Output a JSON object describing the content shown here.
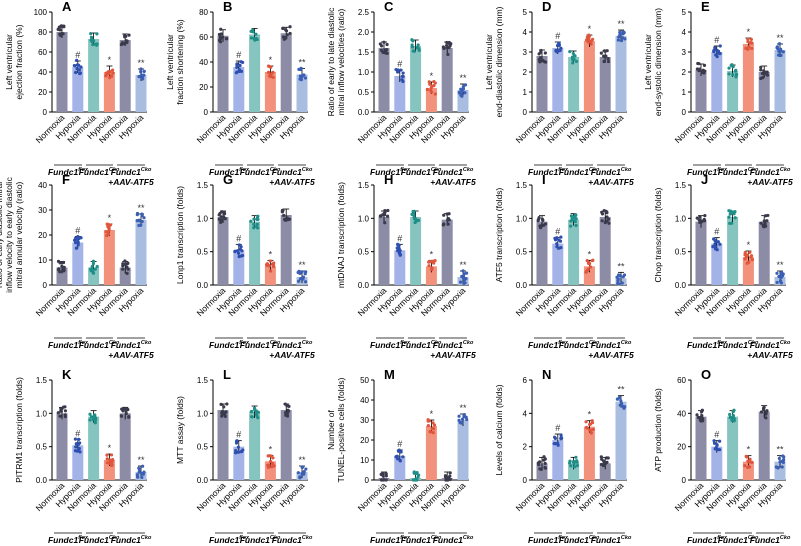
{
  "figure": {
    "group_labels": [
      "Fundc1",
      "flox",
      "Fundc1",
      "Cko",
      "Fundc1",
      "Cko",
      "+AAV-ATF5"
    ],
    "condition_labels": [
      "Normoxia",
      "Hypoxia"
    ],
    "colors": {
      "normoxia_fill": "#8c8ca6",
      "normoxia_dot": "#3a3a4c",
      "flox_hypoxia_fill": "#a3b3e8",
      "flox_hypoxia_dot": "#2c4fb0",
      "cko_normoxia_fill": "#86c4c0",
      "cko_normoxia_dot": "#1f8f88",
      "cko_hypoxia_fill": "#f2927c",
      "cko_hypoxia_dot": "#e0553c",
      "atf5_hypoxia_fill": "#a8bde0",
      "atf5_hypoxia_dot": "#3b5fb5"
    }
  },
  "chart_data": [
    {
      "type": "bar",
      "panel": "A",
      "ylabel": [
        "Left ventricular",
        "ejection fraction (%)"
      ],
      "ylim": [
        0,
        100
      ],
      "ticks": [
        "0",
        "20",
        "40",
        "60",
        "80",
        "100"
      ],
      "categories": [
        "Normoxia",
        "Hypoxia",
        "Normoxia",
        "Hypoxia",
        "Normoxia",
        "Hypoxia"
      ],
      "values": [
        80,
        45,
        73,
        40,
        72,
        37
      ],
      "significance": [
        "",
        "#",
        "",
        "*",
        "",
        "**"
      ]
    },
    {
      "type": "bar",
      "panel": "B",
      "ylabel": [
        "Left ventricular",
        "fraction shortening (%)"
      ],
      "ylim": [
        0,
        80
      ],
      "ticks": [
        "0",
        "20",
        "40",
        "60",
        "80"
      ],
      "categories": [
        "Normoxia",
        "Hypoxia",
        "Normoxia",
        "Hypoxia",
        "Normoxia",
        "Hypoxia"
      ],
      "values": [
        61,
        36,
        62,
        32,
        63,
        30
      ],
      "significance": [
        "",
        "#",
        "",
        "*",
        "",
        "**"
      ]
    },
    {
      "type": "bar",
      "panel": "C",
      "ylabel": [
        "Ratio of early to late diastolic",
        "mitral inflow velocities (ratio)"
      ],
      "ylim": [
        0,
        2.5
      ],
      "ticks": [
        "0.0",
        "0.5",
        "1.0",
        "1.5",
        "2.0",
        "2.5"
      ],
      "categories": [
        "Normoxia",
        "Hypoxia",
        "Normoxia",
        "Hypoxia",
        "Normoxia",
        "Hypoxia"
      ],
      "values": [
        1.6,
        0.9,
        1.65,
        0.6,
        1.6,
        0.55
      ],
      "significance": [
        "",
        "#",
        "",
        "*",
        "",
        "**"
      ]
    },
    {
      "type": "bar",
      "panel": "D",
      "ylabel": [
        "Left ventricular",
        "end-diastolic dimension (mm)"
      ],
      "ylim": [
        0,
        5
      ],
      "ticks": [
        "0",
        "1",
        "2",
        "3",
        "4",
        "5"
      ],
      "categories": [
        "Normoxia",
        "Hypoxia",
        "Normoxia",
        "Hypoxia",
        "Normoxia",
        "Hypoxia"
      ],
      "values": [
        2.8,
        3.2,
        2.75,
        3.55,
        2.75,
        3.8
      ],
      "significance": [
        "",
        "#",
        "",
        "*",
        "",
        "**"
      ]
    },
    {
      "type": "bar",
      "panel": "E",
      "ylabel": [
        "Left ventricular",
        "end-systolic dimension (mm)"
      ],
      "ylim": [
        0,
        5
      ],
      "ticks": [
        "0",
        "1",
        "2",
        "3",
        "4",
        "5"
      ],
      "categories": [
        "Normoxia",
        "Hypoxia",
        "Normoxia",
        "Hypoxia",
        "Normoxia",
        "Hypoxia"
      ],
      "values": [
        2.1,
        3.0,
        2.05,
        3.4,
        2.0,
        3.1
      ],
      "significance": [
        "",
        "#",
        "",
        "*",
        "",
        "**"
      ]
    },
    {
      "type": "bar",
      "panel": "F",
      "ylabel": [
        "Ratio of early diastolic mitral",
        "inflow velocity to early diastolic",
        "mitral annular velocity (ratio)"
      ],
      "ylim": [
        0,
        40
      ],
      "ticks": [
        "0",
        "10",
        "20",
        "30",
        "40"
      ],
      "categories": [
        "Normoxia",
        "Hypoxia",
        "Normoxia",
        "Hypoxia",
        "Normoxia",
        "Hypoxia"
      ],
      "values": [
        7,
        17,
        7,
        22,
        7,
        26
      ],
      "significance": [
        "",
        "#",
        "",
        "*",
        "",
        "**"
      ]
    },
    {
      "type": "bar",
      "panel": "G",
      "ylabel": [
        "Lonp1 transcription (folds)"
      ],
      "ylim": [
        0,
        1.5
      ],
      "ticks": [
        "0.0",
        "0.5",
        "1.0",
        "1.5"
      ],
      "categories": [
        "Normoxia",
        "Hypoxia",
        "Normoxia",
        "Hypoxia",
        "Normoxia",
        "Hypoxia"
      ],
      "values": [
        1.02,
        0.52,
        0.95,
        0.28,
        1.05,
        0.12
      ],
      "significance": [
        "",
        "#",
        "",
        "*",
        "",
        "**"
      ]
    },
    {
      "type": "bar",
      "panel": "H",
      "ylabel": [
        "mtDNAJ transcription (folds)"
      ],
      "ylim": [
        0,
        1.5
      ],
      "ticks": [
        "0.0",
        "0.5",
        "1.0",
        "1.5"
      ],
      "categories": [
        "Normoxia",
        "Hypoxia",
        "Normoxia",
        "Hypoxia",
        "Normoxia",
        "Hypoxia"
      ],
      "values": [
        1.02,
        0.52,
        1.02,
        0.28,
        0.98,
        0.12
      ],
      "significance": [
        "",
        "#",
        "",
        "*",
        "",
        "**"
      ]
    },
    {
      "type": "bar",
      "panel": "I",
      "ylabel": [
        "ATF5 transcription (folds)"
      ],
      "ylim": [
        0,
        1.5
      ],
      "ticks": [
        "0.0",
        "0.5",
        "1.0",
        "1.5"
      ],
      "categories": [
        "Normoxia",
        "Hypoxia",
        "Normoxia",
        "Hypoxia",
        "Normoxia",
        "Hypoxia"
      ],
      "values": [
        0.95,
        0.62,
        0.98,
        0.28,
        1.02,
        0.1
      ],
      "significance": [
        "",
        "#",
        "",
        "*",
        "",
        "**"
      ]
    },
    {
      "type": "bar",
      "panel": "J",
      "ylabel": [
        "Chop transcription (folds)"
      ],
      "ylim": [
        0,
        1.5
      ],
      "ticks": [
        "0.0",
        "0.5",
        "1.0",
        "1.5"
      ],
      "categories": [
        "Normoxia",
        "Hypoxia",
        "Normoxia",
        "Hypoxia",
        "Normoxia",
        "Hypoxia"
      ],
      "values": [
        0.95,
        0.62,
        1.02,
        0.42,
        0.95,
        0.12
      ],
      "significance": [
        "",
        "#",
        "",
        "*",
        "",
        "**"
      ]
    },
    {
      "type": "bar",
      "panel": "K",
      "ylabel": [
        "PITRM1  transcription (folds)"
      ],
      "ylim": [
        0,
        1.5
      ],
      "ticks": [
        "0.0",
        "0.5",
        "1.0",
        "1.5"
      ],
      "categories": [
        "Normoxia",
        "Hypoxia",
        "Normoxia",
        "Hypoxia",
        "Normoxia",
        "Hypoxia"
      ],
      "values": [
        1.0,
        0.52,
        0.95,
        0.3,
        1.0,
        0.12
      ],
      "significance": [
        "",
        "#",
        "",
        "*",
        "",
        "**"
      ]
    },
    {
      "type": "bar",
      "panel": "L",
      "ylabel": [
        "MTT assay (folds)"
      ],
      "ylim": [
        0,
        1.5
      ],
      "ticks": [
        "0.0",
        "0.5",
        "1.0",
        "1.5"
      ],
      "categories": [
        "Normoxia",
        "Hypoxia",
        "Normoxia",
        "Hypoxia",
        "Normoxia",
        "Hypoxia"
      ],
      "values": [
        1.05,
        0.5,
        1.02,
        0.28,
        1.05,
        0.12
      ],
      "significance": [
        "",
        "#",
        "",
        "*",
        "",
        "**"
      ]
    },
    {
      "type": "bar",
      "panel": "M",
      "ylabel": [
        "Number of",
        "TUNEL-positive cells (folds)"
      ],
      "ylim": [
        0,
        50
      ],
      "ticks": [
        "0",
        "10",
        "20",
        "30",
        "40",
        "50"
      ],
      "categories": [
        "Normoxia",
        "Hypoxia",
        "Normoxia",
        "Hypoxia",
        "Normoxia",
        "Hypoxia"
      ],
      "values": [
        1,
        12,
        1,
        27,
        1,
        30
      ],
      "significance": [
        "",
        "#",
        "",
        "*",
        "",
        "**"
      ]
    },
    {
      "type": "bar",
      "panel": "N",
      "ylabel": [
        "Levels of calcium (folds)"
      ],
      "ylim": [
        0,
        6
      ],
      "ticks": [
        "0",
        "2",
        "4",
        "6"
      ],
      "categories": [
        "Normoxia",
        "Hypoxia",
        "Normoxia",
        "Hypoxia",
        "Normoxia",
        "Hypoxia"
      ],
      "values": [
        1.0,
        2.4,
        1.0,
        3.2,
        1.0,
        4.7
      ],
      "significance": [
        "",
        "#",
        "",
        "*",
        "",
        "**"
      ]
    },
    {
      "type": "bar",
      "panel": "O",
      "ylabel": [
        "ATP production (folds)"
      ],
      "ylim": [
        0,
        60
      ],
      "ticks": [
        "0",
        "20",
        "40",
        "60"
      ],
      "categories": [
        "Normoxia",
        "Hypoxia",
        "Normoxia",
        "Hypoxia",
        "Normoxia",
        "Hypoxia"
      ],
      "values": [
        38,
        20,
        38,
        11,
        41,
        11
      ],
      "significance": [
        "",
        "#",
        "",
        "*",
        "",
        "**"
      ]
    }
  ]
}
